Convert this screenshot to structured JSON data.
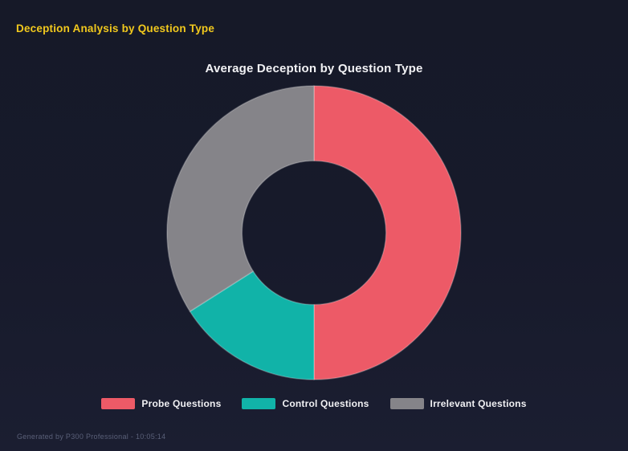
{
  "page": {
    "title": "Deception Analysis by Question Type",
    "footer": "Generated by P300 Professional - 10:05:14"
  },
  "colors": {
    "background": "#171a2b",
    "page_title": "#f2c91d",
    "chart_title": "#f2f2f5",
    "legend_text": "#f0f0f3",
    "footer_text": "#5a6078",
    "segment_edge": "rgba(255,255,255,0.25)"
  },
  "chart_data": {
    "type": "pie",
    "subtype": "donut",
    "title": "Average Deception by Question Type",
    "categories": [
      "Probe Questions",
      "Control Questions",
      "Irrelevant Questions"
    ],
    "values_percent": [
      50,
      16,
      34
    ],
    "colors": [
      "#ed5a67",
      "#11b3a8",
      "#858489"
    ],
    "legend_position": "bottom",
    "legend_entries": [
      "Probe Questions",
      "Control Questions",
      "Irrelevant Questions"
    ],
    "donut_hole_ratio": 0.49,
    "start_angle_deg": 0,
    "direction": "clockwise",
    "data_labels_shown": false
  }
}
